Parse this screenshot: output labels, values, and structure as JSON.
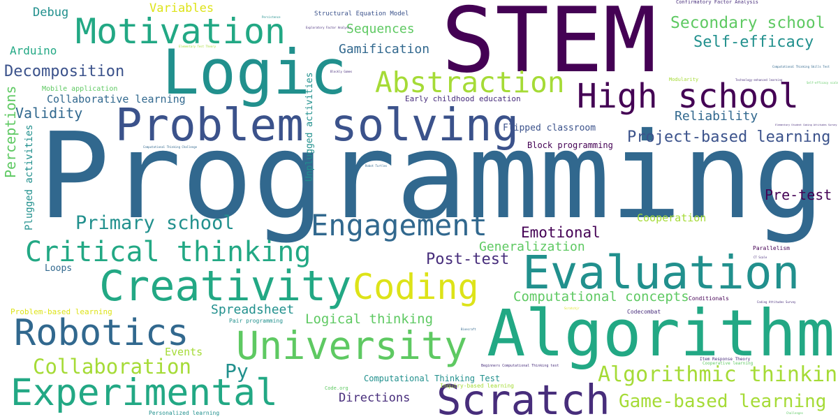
{
  "colors": {
    "background": "#ffffff",
    "palette": [
      "#440154",
      "#472d7b",
      "#3b528b",
      "#31688e",
      "#21908d",
      "#22a884",
      "#5ec962",
      "#a5db36",
      "#dde318"
    ]
  },
  "words": [
    {
      "text": "Programming",
      "color": "#31688e"
    },
    {
      "text": "STEM",
      "color": "#440154"
    },
    {
      "text": "Algorithm",
      "color": "#22a884"
    },
    {
      "text": "Logic",
      "color": "#21908d"
    },
    {
      "text": "Problem solving",
      "color": "#3b528b"
    },
    {
      "text": "Evaluation",
      "color": "#21908d"
    },
    {
      "text": "Creativity",
      "color": "#22a884"
    },
    {
      "text": "University",
      "color": "#5ec962"
    },
    {
      "text": "Scratch",
      "color": "#472d7b"
    },
    {
      "text": "Coding",
      "color": "#dde318"
    },
    {
      "text": "Motivation",
      "color": "#22a884"
    },
    {
      "text": "High school",
      "color": "#440154"
    },
    {
      "text": "Robotics",
      "color": "#31688e"
    },
    {
      "text": "Experimental",
      "color": "#22a884"
    },
    {
      "text": "Abstraction",
      "color": "#a5db36"
    },
    {
      "text": "Engagement",
      "color": "#31688e"
    },
    {
      "text": "Critical thinking",
      "color": "#22a884"
    },
    {
      "text": "Algorithmic thinking",
      "color": "#a5db36"
    },
    {
      "text": "Collaboration",
      "color": "#a5db36"
    },
    {
      "text": "Primary school",
      "color": "#21908d"
    },
    {
      "text": "Game-based learning",
      "color": "#a5db36"
    },
    {
      "text": "Secondary school",
      "color": "#5ec962"
    },
    {
      "text": "Self-efficacy",
      "color": "#21908d"
    },
    {
      "text": "Project-based learning",
      "color": "#3b528b"
    },
    {
      "text": "Computational concepts",
      "color": "#5ec962"
    },
    {
      "text": "Decomposition",
      "color": "#3b528b"
    },
    {
      "text": "Logical thinking",
      "color": "#5ec962"
    },
    {
      "text": "Post-test",
      "color": "#472d7b"
    },
    {
      "text": "Emotional",
      "color": "#440154"
    },
    {
      "text": "Pre-test",
      "color": "#440154"
    },
    {
      "text": "Generalization",
      "color": "#5ec962"
    },
    {
      "text": "Reliability",
      "color": "#31688e"
    },
    {
      "text": "Validity",
      "color": "#31688e"
    },
    {
      "text": "Gamification",
      "color": "#31688e"
    },
    {
      "text": "Sequences",
      "color": "#5ec962"
    },
    {
      "text": "Spreadsheet",
      "color": "#21908d"
    },
    {
      "text": "Collaborative learning",
      "color": "#31688e"
    },
    {
      "text": "Directions",
      "color": "#472d7b"
    },
    {
      "text": "Cooperation",
      "color": "#a5db36"
    },
    {
      "text": "Perceptions",
      "color": "#5ec962"
    },
    {
      "text": "Plugged activities",
      "color": "#21908d"
    },
    {
      "text": "Unplugged activities",
      "color": "#21908d"
    },
    {
      "text": "Py",
      "color": "#21908d"
    },
    {
      "text": "Events",
      "color": "#a5db36"
    },
    {
      "text": "Debug",
      "color": "#21908d"
    },
    {
      "text": "Arduino",
      "color": "#22a884"
    },
    {
      "text": "Variables",
      "color": "#dde318"
    },
    {
      "text": "Loops",
      "color": "#31688e"
    },
    {
      "text": "Flipped classroom",
      "color": "#3b528b"
    },
    {
      "text": "Block programming",
      "color": "#440154"
    },
    {
      "text": "Early childhood education",
      "color": "#472d7b"
    },
    {
      "text": "Computational Thinking Test",
      "color": "#21908d"
    },
    {
      "text": "Mobile application",
      "color": "#5ec962"
    },
    {
      "text": "Problem-based learning",
      "color": "#dde318"
    },
    {
      "text": "Structural Equation Model",
      "color": "#3b528b"
    },
    {
      "text": "Confirmatory Factor Analysis",
      "color": "#472d7b"
    },
    {
      "text": "Pair programming",
      "color": "#21908d"
    },
    {
      "text": "Personalized learning",
      "color": "#21908d"
    },
    {
      "text": "Inquiry-based learning",
      "color": "#a5db36"
    },
    {
      "text": "Code.org",
      "color": "#5ec962"
    },
    {
      "text": "Codecombat",
      "color": "#472d7b"
    },
    {
      "text": "Conditionals",
      "color": "#440154"
    },
    {
      "text": "Parallelism",
      "color": "#440154"
    },
    {
      "text": "Modularity",
      "color": "#a5db36"
    },
    {
      "text": "Beginners Computational Thinking test",
      "color": "#472d7b"
    },
    {
      "text": "Item Response Theory",
      "color": "#472d7b"
    },
    {
      "text": "Cooperative learning",
      "color": "#5ec962"
    },
    {
      "text": "Persistence",
      "color": "#21908d"
    },
    {
      "text": "Exploratory Factor Analysis",
      "color": "#472d7b"
    },
    {
      "text": "Elementary Test Theory",
      "color": "#a5db36"
    },
    {
      "text": "Blockly Games",
      "color": "#472d7b"
    },
    {
      "text": "Computational Thinking Skills Test",
      "color": "#31688e"
    },
    {
      "text": "Technology-enhanced learning",
      "color": "#472d7b"
    },
    {
      "text": "Self-efficacy scale",
      "color": "#5ec962"
    },
    {
      "text": "Elementary Student Coding Attitudes Survey",
      "color": "#472d7b"
    },
    {
      "text": "Computational Thinking Challenge",
      "color": "#31688e"
    },
    {
      "text": "Robot Turtles",
      "color": "#31688e"
    },
    {
      "text": "CT Scale",
      "color": "#472d7b"
    },
    {
      "text": "Coding Attitudes Survey",
      "color": "#472d7b"
    },
    {
      "text": "Bioecraft",
      "color": "#31688e"
    },
    {
      "text": "Scratchjr",
      "color": "#dde318"
    },
    {
      "text": "Challenges",
      "color": "#5ec962"
    }
  ]
}
